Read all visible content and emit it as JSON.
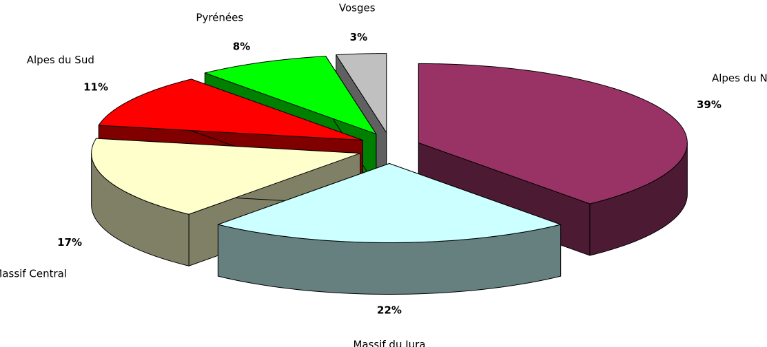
{
  "chart_data": {
    "type": "pie",
    "categories": [
      "Alpes du Nord",
      "Massif du Jura",
      "Massif Central",
      "Alpes du Sud",
      "Pyrénées",
      "Vosges"
    ],
    "values": [
      39,
      22,
      17,
      11,
      8,
      3
    ],
    "value_labels": [
      "39%",
      "22%",
      "17%",
      "11%",
      "8%",
      "3%"
    ],
    "colors": [
      "#993366",
      "#ccffff",
      "#ffffcc",
      "#ff0000",
      "#00ff00",
      "#c0c0c0"
    ]
  }
}
